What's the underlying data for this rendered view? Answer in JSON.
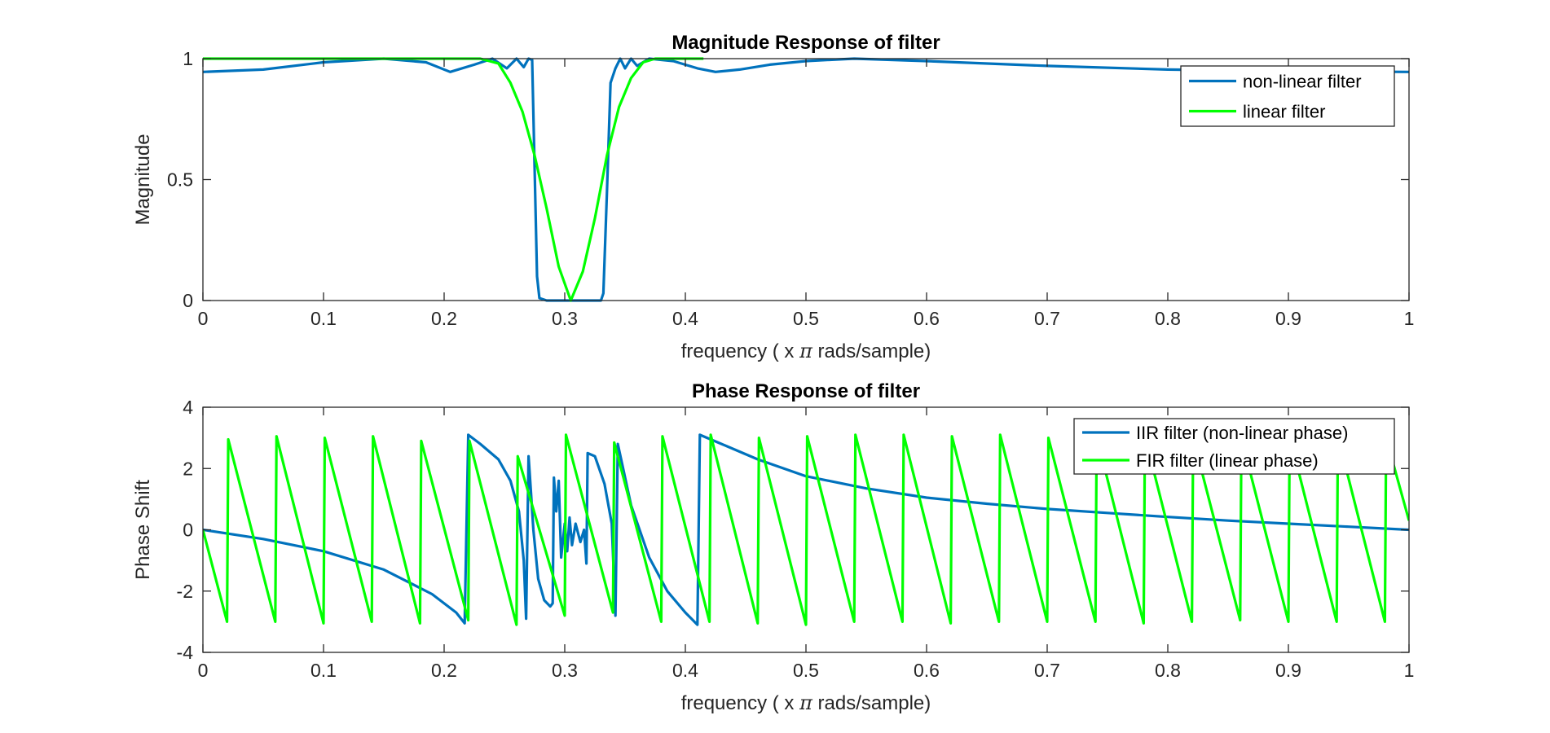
{
  "chart_data": [
    {
      "type": "line",
      "title": "Magnitude Response of filter",
      "xlabel_prefix": "frequency ( x ",
      "xlabel_symbol": "π",
      "xlabel_suffix": " rads/sample)",
      "ylabel": "Magnitude",
      "xlim": [
        0,
        1
      ],
      "ylim": [
        0,
        1
      ],
      "xticks": [
        "0",
        "0.1",
        "0.2",
        "0.3",
        "0.4",
        "0.5",
        "0.6",
        "0.7",
        "0.8",
        "0.9",
        "1"
      ],
      "yticks": [
        "0",
        "0.5",
        "1"
      ],
      "legend_location": "top-right",
      "series": [
        {
          "name": "non-linear filter",
          "color": "#0072BD",
          "points": [
            [
              0,
              0.945
            ],
            [
              0.05,
              0.955
            ],
            [
              0.1,
              0.985
            ],
            [
              0.15,
              1.0
            ],
            [
              0.185,
              0.985
            ],
            [
              0.205,
              0.945
            ],
            [
              0.225,
              0.975
            ],
            [
              0.24,
              1.0
            ],
            [
              0.252,
              0.96
            ],
            [
              0.26,
              1.0
            ],
            [
              0.266,
              0.965
            ],
            [
              0.27,
              1.0
            ],
            [
              0.273,
              0.995
            ],
            [
              0.275,
              0.55
            ],
            [
              0.277,
              0.1
            ],
            [
              0.279,
              0.01
            ],
            [
              0.285,
              0.0
            ],
            [
              0.3,
              0.0
            ],
            [
              0.32,
              0.0
            ],
            [
              0.33,
              0.0
            ],
            [
              0.332,
              0.03
            ],
            [
              0.335,
              0.45
            ],
            [
              0.338,
              0.9
            ],
            [
              0.342,
              0.96
            ],
            [
              0.346,
              1.0
            ],
            [
              0.35,
              0.96
            ],
            [
              0.355,
              1.0
            ],
            [
              0.36,
              0.97
            ],
            [
              0.37,
              1.0
            ],
            [
              0.39,
              0.99
            ],
            [
              0.41,
              0.96
            ],
            [
              0.425,
              0.945
            ],
            [
              0.445,
              0.955
            ],
            [
              0.47,
              0.975
            ],
            [
              0.5,
              0.99
            ],
            [
              0.54,
              1.0
            ],
            [
              0.6,
              0.99
            ],
            [
              0.7,
              0.97
            ],
            [
              0.8,
              0.955
            ],
            [
              0.9,
              0.948
            ],
            [
              1.0,
              0.945
            ]
          ]
        },
        {
          "name": "linear filter",
          "color": "#00FF00",
          "points": [
            [
              0,
              1.0
            ],
            [
              0.23,
              1.0
            ],
            [
              0.245,
              0.98
            ],
            [
              0.255,
              0.9
            ],
            [
              0.265,
              0.78
            ],
            [
              0.275,
              0.6
            ],
            [
              0.285,
              0.38
            ],
            [
              0.295,
              0.14
            ],
            [
              0.305,
              0.0
            ],
            [
              0.315,
              0.12
            ],
            [
              0.325,
              0.34
            ],
            [
              0.335,
              0.6
            ],
            [
              0.345,
              0.8
            ],
            [
              0.355,
              0.92
            ],
            [
              0.365,
              0.985
            ],
            [
              0.375,
              1.0
            ],
            [
              0.4,
              1.0
            ],
            [
              0.415,
              1.0
            ]
          ]
        }
      ]
    },
    {
      "type": "line",
      "title": "Phase Response of filter",
      "xlabel_prefix": "frequency ( x ",
      "xlabel_symbol": "π",
      "xlabel_suffix": " rads/sample)",
      "ylabel": "Phase Shift",
      "xlim": [
        0,
        1
      ],
      "ylim": [
        -4,
        4
      ],
      "xticks": [
        "0",
        "0.1",
        "0.2",
        "0.3",
        "0.4",
        "0.5",
        "0.6",
        "0.7",
        "0.8",
        "0.9",
        "1"
      ],
      "yticks": [
        "-4",
        "-2",
        "0",
        "2",
        "4"
      ],
      "legend_location": "top-right",
      "series": [
        {
          "name": "IIR filter (non-linear phase)",
          "color": "#0072BD",
          "points": [
            [
              0,
              0.0
            ],
            [
              0.05,
              -0.3
            ],
            [
              0.1,
              -0.7
            ],
            [
              0.15,
              -1.3
            ],
            [
              0.19,
              -2.1
            ],
            [
              0.21,
              -2.7
            ],
            [
              0.217,
              -3.05
            ],
            [
              0.22,
              3.1
            ],
            [
              0.23,
              2.8
            ],
            [
              0.245,
              2.3
            ],
            [
              0.255,
              1.6
            ],
            [
              0.262,
              0.6
            ],
            [
              0.266,
              -1.0
            ],
            [
              0.268,
              -2.9
            ],
            [
              0.27,
              2.4
            ],
            [
              0.272,
              1.2
            ],
            [
              0.274,
              0.0
            ],
            [
              0.278,
              -1.6
            ],
            [
              0.283,
              -2.3
            ],
            [
              0.288,
              -2.5
            ],
            [
              0.29,
              -2.4
            ],
            [
              0.291,
              1.7
            ],
            [
              0.293,
              0.6
            ],
            [
              0.295,
              1.6
            ],
            [
              0.297,
              -0.9
            ],
            [
              0.3,
              0.2
            ],
            [
              0.302,
              -0.7
            ],
            [
              0.304,
              0.4
            ],
            [
              0.306,
              -0.5
            ],
            [
              0.309,
              0.2
            ],
            [
              0.313,
              -0.4
            ],
            [
              0.316,
              0.0
            ],
            [
              0.318,
              -1.1
            ],
            [
              0.319,
              2.5
            ],
            [
              0.325,
              2.4
            ],
            [
              0.333,
              1.5
            ],
            [
              0.339,
              0.2
            ],
            [
              0.342,
              -2.8
            ],
            [
              0.344,
              2.8
            ],
            [
              0.355,
              0.8
            ],
            [
              0.37,
              -0.9
            ],
            [
              0.385,
              -2.0
            ],
            [
              0.4,
              -2.7
            ],
            [
              0.41,
              -3.1
            ],
            [
              0.412,
              3.1
            ],
            [
              0.43,
              2.8
            ],
            [
              0.46,
              2.3
            ],
            [
              0.5,
              1.75
            ],
            [
              0.55,
              1.35
            ],
            [
              0.6,
              1.05
            ],
            [
              0.65,
              0.85
            ],
            [
              0.7,
              0.68
            ],
            [
              0.75,
              0.55
            ],
            [
              0.8,
              0.42
            ],
            [
              0.85,
              0.3
            ],
            [
              0.9,
              0.2
            ],
            [
              0.95,
              0.1
            ],
            [
              1.0,
              0.0
            ]
          ]
        },
        {
          "name": "FIR filter (linear phase)",
          "color": "#00FF00",
          "points": [
            [
              0,
              0.0
            ],
            [
              0.02,
              -3.0
            ],
            [
              0.021,
              2.95
            ],
            [
              0.06,
              -3.0
            ],
            [
              0.061,
              3.05
            ],
            [
              0.1,
              -3.05
            ],
            [
              0.101,
              3.0
            ],
            [
              0.14,
              -3.0
            ],
            [
              0.141,
              3.05
            ],
            [
              0.18,
              -3.05
            ],
            [
              0.181,
              2.9
            ],
            [
              0.22,
              -2.95
            ],
            [
              0.221,
              2.9
            ],
            [
              0.26,
              -3.1
            ],
            [
              0.261,
              2.4
            ],
            [
              0.3,
              -2.8
            ],
            [
              0.301,
              3.1
            ],
            [
              0.34,
              -2.7
            ],
            [
              0.341,
              2.85
            ],
            [
              0.38,
              -3.0
            ],
            [
              0.381,
              3.05
            ],
            [
              0.42,
              -3.0
            ],
            [
              0.421,
              3.1
            ],
            [
              0.46,
              -3.05
            ],
            [
              0.461,
              3.0
            ],
            [
              0.5,
              -3.1
            ],
            [
              0.501,
              3.05
            ],
            [
              0.54,
              -3.0
            ],
            [
              0.541,
              3.1
            ],
            [
              0.58,
              -3.0
            ],
            [
              0.581,
              3.1
            ],
            [
              0.62,
              -3.05
            ],
            [
              0.621,
              3.05
            ],
            [
              0.66,
              -3.0
            ],
            [
              0.661,
              3.1
            ],
            [
              0.7,
              -3.0
            ],
            [
              0.701,
              3.0
            ],
            [
              0.74,
              -3.0
            ],
            [
              0.741,
              3.05
            ],
            [
              0.78,
              -3.05
            ],
            [
              0.781,
              3.05
            ],
            [
              0.82,
              -3.0
            ],
            [
              0.821,
              3.0
            ],
            [
              0.86,
              -2.95
            ],
            [
              0.861,
              3.0
            ],
            [
              0.9,
              -3.0
            ],
            [
              0.901,
              3.05
            ],
            [
              0.94,
              -3.0
            ],
            [
              0.941,
              3.05
            ],
            [
              0.98,
              -3.0
            ],
            [
              0.981,
              3.0
            ],
            [
              1.0,
              0.3
            ]
          ]
        }
      ]
    }
  ]
}
